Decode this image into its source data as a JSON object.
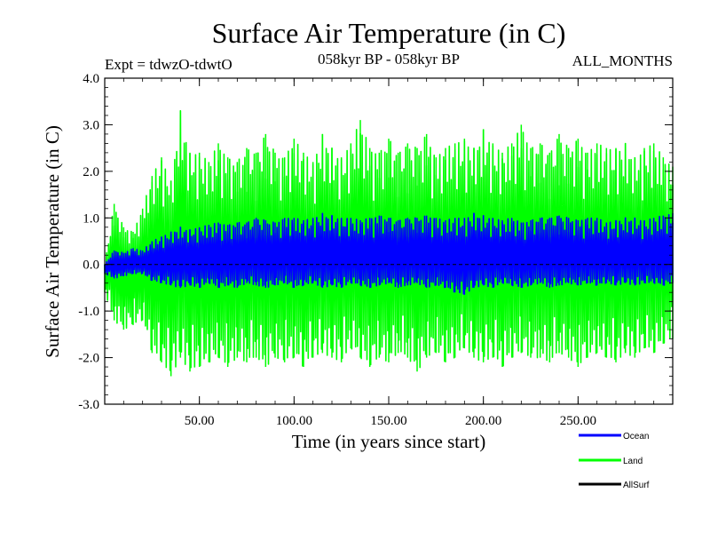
{
  "chart_data": {
    "type": "line",
    "title": "Surface Air Temperature (in C)",
    "subtitle_left": "Expt = tdwzO-tdwtO",
    "subtitle_center": "058kyr BP - 058kyr BP",
    "subtitle_right": "ALL_MONTHS",
    "xlabel": "Time (in years since start)",
    "ylabel": "Surface Air Temperature (in C)",
    "xlim": [
      0,
      300
    ],
    "ylim": [
      -3.0,
      4.0
    ],
    "xticks": [
      50,
      100,
      150,
      200,
      250
    ],
    "xtick_labels": [
      "50.00",
      "100.00",
      "150.00",
      "200.00",
      "250.00"
    ],
    "yticks": [
      -3.0,
      -2.0,
      -1.0,
      0.0,
      1.0,
      2.0,
      3.0,
      4.0
    ],
    "ytick_labels": [
      "-3.0",
      "-2.0",
      "-1.0",
      "0.0",
      "1.0",
      "2.0",
      "3.0",
      "4.0"
    ],
    "zero_line": "dashed",
    "legend_position": "bottom-right",
    "series": [
      {
        "name": "Land",
        "color": "#00ff00",
        "x": [
          0,
          5,
          10,
          15,
          20,
          25,
          30,
          35,
          40,
          45,
          50,
          55,
          60,
          65,
          70,
          75,
          80,
          85,
          90,
          95,
          100,
          105,
          110,
          115,
          120,
          125,
          130,
          135,
          140,
          145,
          150,
          155,
          160,
          165,
          170,
          175,
          180,
          185,
          190,
          195,
          200,
          205,
          210,
          215,
          220,
          225,
          230,
          235,
          240,
          245,
          250,
          255,
          260,
          265,
          270,
          275,
          280,
          285,
          290,
          295,
          300
        ],
        "upper": [
          0.0,
          1.3,
          0.8,
          0.7,
          1.2,
          1.9,
          2.3,
          1.8,
          3.3,
          2.4,
          2.4,
          2.2,
          2.6,
          2.3,
          2.2,
          2.5,
          2.4,
          2.8,
          2.4,
          2.3,
          2.7,
          2.4,
          2.2,
          2.8,
          2.5,
          2.3,
          2.6,
          3.1,
          2.5,
          2.4,
          2.7,
          2.4,
          2.6,
          2.5,
          2.8,
          2.3,
          2.5,
          2.6,
          2.7,
          2.5,
          2.9,
          2.6,
          2.4,
          2.6,
          3.0,
          2.5,
          2.6,
          2.4,
          2.8,
          2.5,
          2.7,
          2.4,
          2.6,
          2.5,
          2.5,
          2.6,
          2.3,
          2.5,
          2.6,
          2.3,
          2.1
        ],
        "lower": [
          -0.6,
          -1.2,
          -1.4,
          -1.3,
          -1.2,
          -1.9,
          -2.1,
          -2.4,
          -2.0,
          -2.3,
          -2.2,
          -2.1,
          -2.0,
          -2.2,
          -2.0,
          -2.1,
          -2.0,
          -2.2,
          -2.0,
          -2.1,
          -2.0,
          -2.2,
          -2.0,
          -1.9,
          -2.0,
          -2.1,
          -1.8,
          -2.0,
          -2.2,
          -2.0,
          -2.1,
          -1.9,
          -2.0,
          -2.3,
          -2.0,
          -1.9,
          -2.1,
          -2.0,
          -1.8,
          -2.0,
          -2.1,
          -2.0,
          -2.2,
          -2.0,
          -1.9,
          -2.0,
          -2.0,
          -2.1,
          -1.9,
          -2.0,
          -2.2,
          -2.0,
          -1.9,
          -2.0,
          -2.1,
          -1.9,
          -2.0,
          -1.8,
          -1.9,
          -1.7,
          -1.6
        ]
      },
      {
        "name": "Ocean",
        "color": "#0000ff",
        "x": [
          0,
          5,
          10,
          15,
          20,
          25,
          30,
          35,
          40,
          45,
          50,
          55,
          60,
          65,
          70,
          75,
          80,
          85,
          90,
          95,
          100,
          105,
          110,
          115,
          120,
          125,
          130,
          135,
          140,
          145,
          150,
          155,
          160,
          165,
          170,
          175,
          180,
          185,
          190,
          195,
          200,
          205,
          210,
          215,
          220,
          225,
          230,
          235,
          240,
          245,
          250,
          255,
          260,
          265,
          270,
          275,
          280,
          285,
          290,
          295,
          300
        ],
        "upper": [
          0.0,
          0.3,
          0.25,
          0.35,
          0.3,
          0.5,
          0.6,
          0.7,
          0.8,
          0.75,
          0.8,
          0.85,
          0.9,
          0.85,
          0.9,
          0.9,
          1.0,
          0.95,
          0.9,
          1.0,
          1.0,
          0.95,
          1.0,
          1.1,
          1.05,
          1.0,
          1.0,
          0.95,
          1.0,
          1.05,
          1.0,
          0.95,
          1.0,
          1.0,
          1.05,
          1.0,
          0.95,
          1.0,
          1.0,
          1.1,
          1.05,
          1.0,
          0.95,
          1.0,
          0.9,
          0.95,
          1.0,
          1.0,
          1.05,
          1.0,
          0.95,
          1.0,
          1.0,
          0.9,
          0.95,
          1.0,
          1.0,
          0.95,
          1.0,
          1.05,
          1.1
        ],
        "lower": [
          -0.2,
          -0.3,
          -0.25,
          -0.2,
          -0.2,
          -0.35,
          -0.4,
          -0.45,
          -0.5,
          -0.45,
          -0.5,
          -0.4,
          -0.5,
          -0.45,
          -0.5,
          -0.4,
          -0.45,
          -0.5,
          -0.45,
          -0.4,
          -0.5,
          -0.45,
          -0.4,
          -0.5,
          -0.45,
          -0.5,
          -0.4,
          -0.45,
          -0.5,
          -0.45,
          -0.4,
          -0.5,
          -0.45,
          -0.4,
          -0.5,
          -0.45,
          -0.5,
          -0.6,
          -0.65,
          -0.5,
          -0.45,
          -0.5,
          -0.4,
          -0.45,
          -0.5,
          -0.45,
          -0.4,
          -0.5,
          -0.45,
          -0.4,
          -0.45,
          -0.4,
          -0.45,
          -0.4,
          -0.45,
          -0.4,
          -0.45,
          -0.4,
          -0.4,
          -0.45,
          -0.4
        ]
      },
      {
        "name": "AllSurf",
        "color": "#000000",
        "x": [],
        "upper": [],
        "lower": []
      }
    ],
    "legend": [
      {
        "label": "Ocean",
        "color": "#0000ff"
      },
      {
        "label": "Land",
        "color": "#00ff00"
      },
      {
        "label": "AllSurf",
        "color": "#000000"
      }
    ]
  }
}
